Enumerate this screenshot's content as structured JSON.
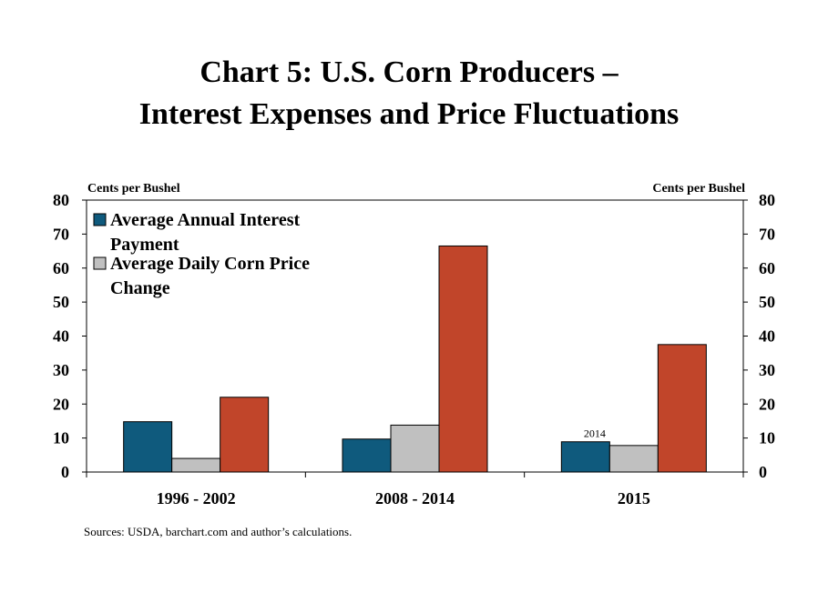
{
  "title_line1": "Chart 5: U.S. Corn Producers –",
  "title_line2": "Interest Expenses and Price Fluctuations",
  "left_axis_unit": "Cents per Bushel",
  "right_axis_unit": "Cents per Bushel",
  "source": "Sources: USDA, barchart.com and author’s calculations.",
  "chart_data": {
    "type": "bar",
    "categories": [
      "1996 - 2002",
      "2008 - 2014",
      "2015"
    ],
    "series": [
      {
        "name": "Average Annual Interest Payment",
        "legend_lines": [
          "Average Annual Interest",
          "Payment"
        ],
        "values": [
          14.8,
          9.7,
          8.9
        ],
        "color": "#0f5a7d",
        "in_legend": true
      },
      {
        "name": "Average Daily Corn Price Change",
        "legend_lines": [
          "Average Daily Corn Price",
          "Change"
        ],
        "values": [
          4.0,
          13.8,
          7.8
        ],
        "color": "#c0c0c0",
        "in_legend": true
      },
      {
        "name": "",
        "values": [
          22.0,
          66.5,
          37.5
        ],
        "color": "#c1452a",
        "in_legend": false
      }
    ],
    "ylim": [
      0,
      80
    ],
    "yticks": [
      0,
      10,
      20,
      30,
      40,
      50,
      60,
      70,
      80
    ],
    "secondary_yticks": [
      0,
      10,
      20,
      30,
      40,
      50,
      60,
      70,
      80
    ],
    "annotations": [
      {
        "text": "2014",
        "category_index": 2,
        "series_index": 0
      }
    ],
    "legend_position": "top-left",
    "grid": false
  }
}
